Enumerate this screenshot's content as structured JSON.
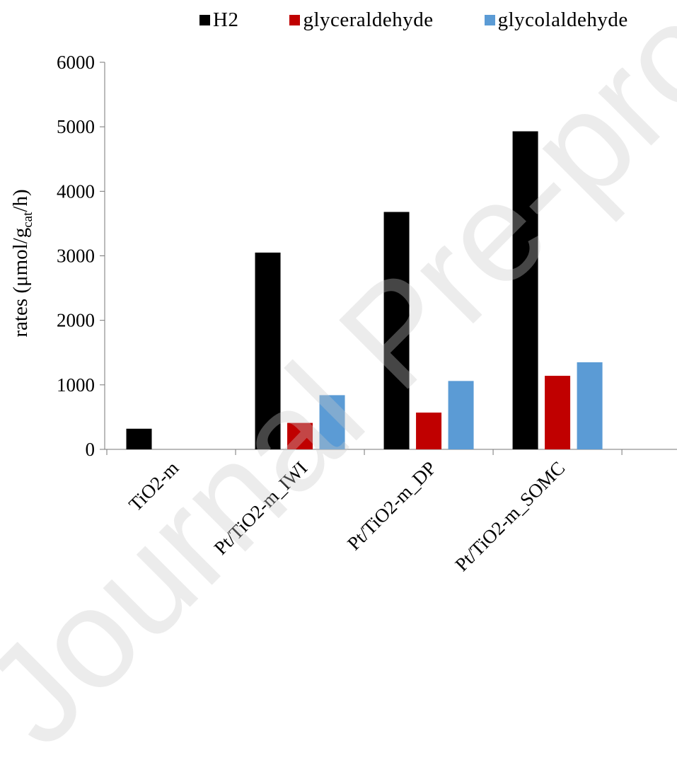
{
  "chart_data": {
    "type": "bar",
    "title": "",
    "xlabel": "",
    "ylabel": "rates (μmol/g",
    "ylabel_sub": "cat",
    "ylabel_tail": "/h)",
    "categories": [
      "TiO2-m",
      "Pt/TiO2-m_IWI",
      "Pt/TiO2-m_DP",
      "Pt/TiO2-m_SOMC"
    ],
    "series": [
      {
        "name": "H2",
        "color": "#000000",
        "values": [
          320,
          3050,
          3680,
          4930
        ]
      },
      {
        "name": "glyceraldehyde",
        "color": "#c00000",
        "values": [
          0,
          410,
          570,
          1140
        ]
      },
      {
        "name": "glycolaldehyde",
        "color": "#5b9bd5",
        "values": [
          0,
          840,
          1060,
          1350
        ]
      }
    ],
    "ylim": [
      0,
      6000
    ],
    "yticks": [
      0,
      1000,
      2000,
      3000,
      4000,
      5000,
      6000
    ],
    "grid": false,
    "legend_position": "top"
  },
  "watermark": "Journal Pre-proof"
}
